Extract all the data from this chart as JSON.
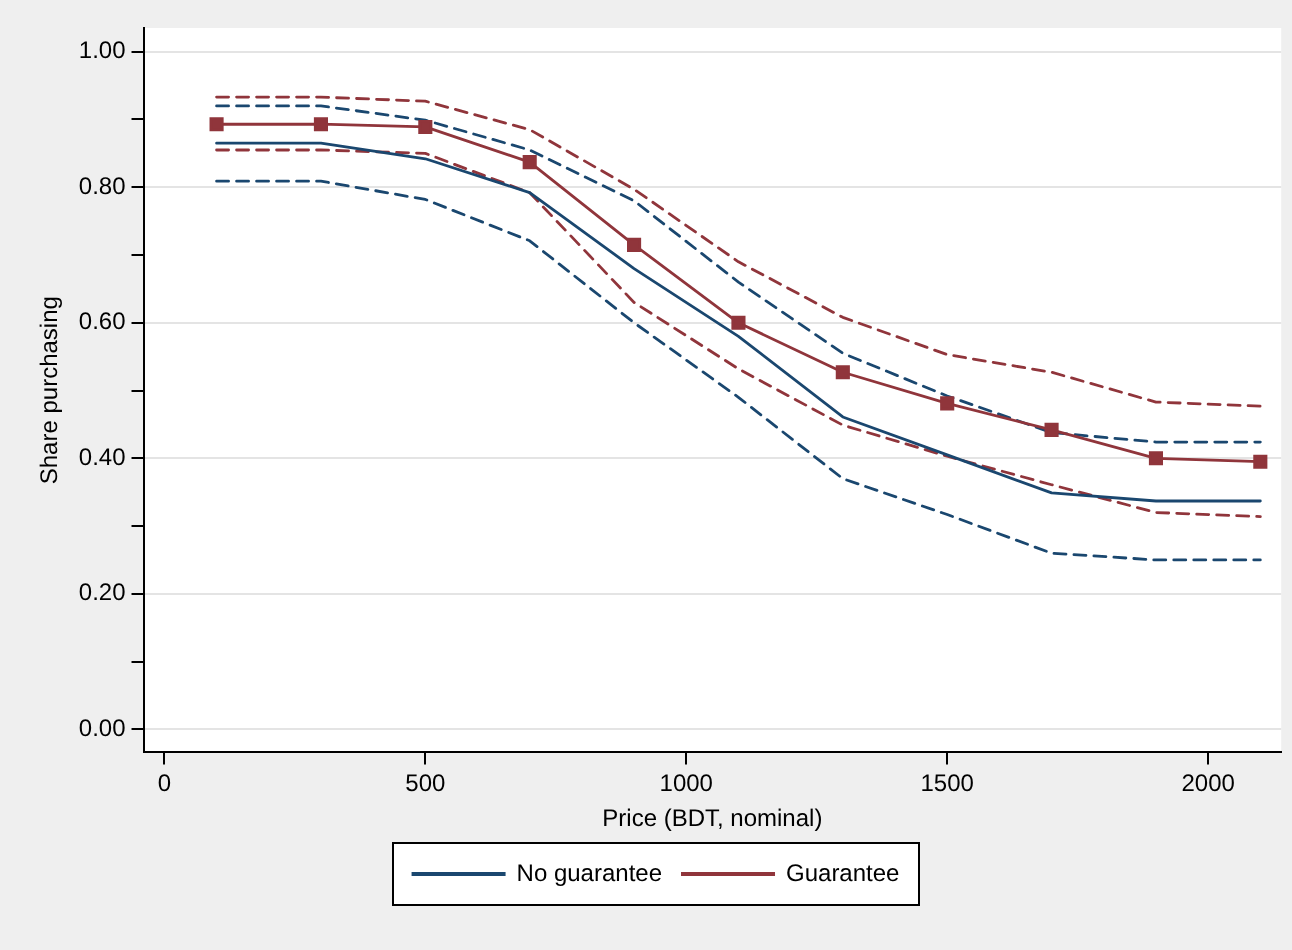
{
  "chart_data": {
    "type": "line",
    "xlabel": "Price (BDT, nominal)",
    "ylabel": "Share purchasing",
    "x": [
      100,
      300,
      500,
      700,
      900,
      1100,
      1300,
      1500,
      1700,
      1900,
      2100
    ],
    "series": [
      {
        "name": "No guarantee",
        "color": "#1a476f",
        "marker": "none",
        "line_style": "solid",
        "values": [
          0.865,
          0.865,
          0.842,
          0.792,
          0.68,
          0.58,
          0.461,
          0.405,
          0.349,
          0.337,
          0.337
        ]
      },
      {
        "name": "Guarantee",
        "color": "#90353b",
        "marker": "square",
        "line_style": "solid",
        "values": [
          0.893,
          0.893,
          0.889,
          0.837,
          0.715,
          0.6,
          0.527,
          0.481,
          0.442,
          0.4,
          0.395
        ]
      },
      {
        "color": "#1a476f",
        "marker": "none",
        "line_style": "dashed",
        "values": [
          0.92,
          0.92,
          0.899,
          0.855,
          0.78,
          0.66,
          0.555,
          0.492,
          0.438,
          0.424,
          0.424
        ]
      },
      {
        "color": "#1a476f",
        "marker": "none",
        "line_style": "dashed",
        "values": [
          0.809,
          0.809,
          0.782,
          0.721,
          0.6,
          0.49,
          0.37,
          0.317,
          0.26,
          0.25,
          0.25
        ]
      },
      {
        "color": "#90353b",
        "marker": "none",
        "line_style": "dashed",
        "values": [
          0.933,
          0.933,
          0.927,
          0.885,
          0.797,
          0.69,
          0.608,
          0.553,
          0.527,
          0.483,
          0.477
        ]
      },
      {
        "color": "#90353b",
        "marker": "none",
        "line_style": "dashed",
        "values": [
          0.855,
          0.855,
          0.85,
          0.792,
          0.63,
          0.532,
          0.449,
          0.403,
          0.361,
          0.32,
          0.314
        ]
      }
    ],
    "xlim": [
      -40,
      2140
    ],
    "xticks": [
      0,
      500,
      1000,
      1500,
      2000
    ],
    "ylim": [
      -0.034,
      1.035
    ],
    "yticks": [
      {
        "value": 0,
        "label": "0.00"
      },
      {
        "value": 0.1,
        "label": null
      },
      {
        "value": 0.2,
        "label": "0.20"
      },
      {
        "value": 0.3,
        "label": null
      },
      {
        "value": 0.4,
        "label": "0.40"
      },
      {
        "value": 0.5,
        "label": null
      },
      {
        "value": 0.6,
        "label": "0.60"
      },
      {
        "value": 0.7,
        "label": null
      },
      {
        "value": 0.8,
        "label": "0.80"
      },
      {
        "value": 0.9,
        "label": null
      },
      {
        "value": 1,
        "label": "1.00"
      }
    ],
    "grid": "y",
    "legend": "bottom"
  }
}
